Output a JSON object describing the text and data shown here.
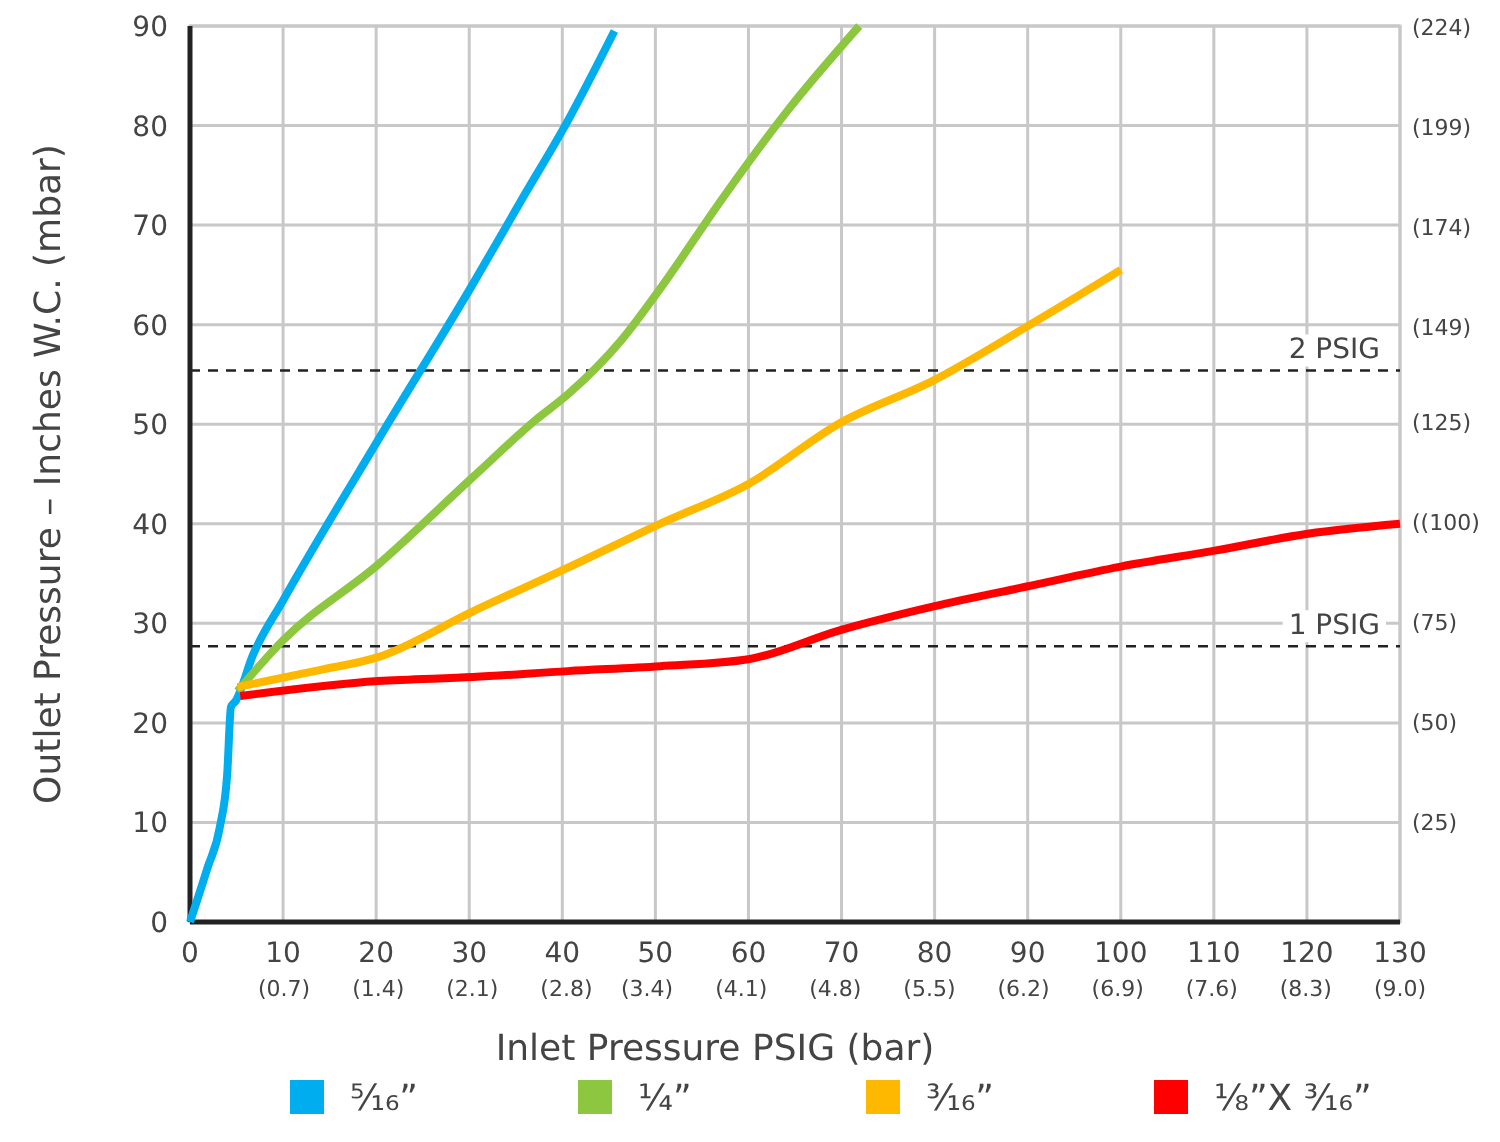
{
  "chart_data": {
    "type": "line",
    "xlabel": "Inlet Pressure PSIG (bar)",
    "ylabel": "Outlet Pressure – Inches W.C. (mbar)",
    "xlim": [
      0,
      130
    ],
    "ylim": [
      0,
      90
    ],
    "xticks": [
      0,
      10,
      20,
      30,
      40,
      50,
      60,
      70,
      80,
      90,
      100,
      110,
      120,
      130
    ],
    "x2lim": [
      0,
      9.0
    ],
    "x2ticks": [
      {
        "value": 0.7,
        "label": "(0.7)"
      },
      {
        "value": 1.4,
        "label": "(1.4)"
      },
      {
        "value": 2.1,
        "label": "(2.1)"
      },
      {
        "value": 2.8,
        "label": "(2.8)"
      },
      {
        "value": 3.4,
        "label": "(3.4)"
      },
      {
        "value": 4.1,
        "label": "(4.1)"
      },
      {
        "value": 4.8,
        "label": "(4.8)"
      },
      {
        "value": 5.5,
        "label": "(5.5)"
      },
      {
        "value": 6.2,
        "label": "(6.2)"
      },
      {
        "value": 6.9,
        "label": "(6.9)"
      },
      {
        "value": 7.6,
        "label": "(7.6)"
      },
      {
        "value": 8.3,
        "label": "(8.3)"
      },
      {
        "value": 9.0,
        "label": "(9.0)"
      }
    ],
    "yticks": [
      0,
      10,
      20,
      30,
      40,
      50,
      60,
      70,
      80,
      90
    ],
    "y2lim": [
      0,
      224.2
    ],
    "y2ticks": [
      {
        "value": 25,
        "label": "(25)"
      },
      {
        "value": 50,
        "label": "(50)"
      },
      {
        "value": 75,
        "label": "(75)"
      },
      {
        "value": 100,
        "label": "((100)"
      },
      {
        "value": 125,
        "label": "(125)"
      },
      {
        "value": 149,
        "label": "(149)"
      },
      {
        "value": 174,
        "label": "(174)"
      },
      {
        "value": 199,
        "label": "(199)"
      },
      {
        "value": 224,
        "label": "(224)"
      }
    ],
    "grid": true,
    "legend": "bottom",
    "marker": "none",
    "line_style": "solid",
    "ref_lines": [
      {
        "axis": "y",
        "value": 55.4,
        "label": "2 PSIG",
        "color": "#222222",
        "line_style": "dashed"
      },
      {
        "axis": "y",
        "value": 27.7,
        "label": "1 PSIG",
        "color": "#222222",
        "line_style": "dashed"
      }
    ],
    "series": [
      {
        "name": "⁵⁄₁₆”",
        "color": "#00aeef",
        "x": [
          0,
          1.9,
          3.2,
          4,
          4.4,
          4.9,
          6.8,
          10,
          20.2,
          30.4,
          35.6,
          40.6,
          45.6
        ],
        "values": [
          0,
          5.5,
          9.5,
          14.9,
          21.6,
          22.2,
          26.9,
          32.3,
          48.4,
          64.1,
          72.5,
          80.5,
          89.5
        ]
      },
      {
        "name": "¼”",
        "color": "#8dc63f",
        "x": [
          5.1,
          10,
          20.2,
          30.4,
          37.1,
          40.6,
          46.3,
          50.5,
          57.3,
          64.2,
          71.9
        ],
        "values": [
          23.2,
          28.3,
          35.9,
          44.7,
          50.4,
          53,
          58.4,
          63.6,
          72.8,
          81.5,
          90
        ]
      },
      {
        "name": "³⁄₁₆”",
        "color": "#ffb800",
        "x": [
          5.1,
          13.9,
          20.2,
          30.4,
          40.6,
          50.5,
          60,
          69.8,
          79.9,
          89.9,
          100
        ],
        "values": [
          23.6,
          25.3,
          26.6,
          31.2,
          35.6,
          40,
          44,
          50.1,
          54.4,
          59.8,
          65.5
        ]
      },
      {
        "name": "⅛”X ³⁄₁₆”",
        "color": "#ff0000",
        "x": [
          5.4,
          20.2,
          30.4,
          40.6,
          50.5,
          60,
          69.8,
          79.9,
          89.9,
          100,
          110.1,
          120.1,
          130
        ],
        "values": [
          22.7,
          24.2,
          24.6,
          25.2,
          25.7,
          26.4,
          29.3,
          31.7,
          33.7,
          35.7,
          37.3,
          39,
          40
        ]
      }
    ]
  }
}
